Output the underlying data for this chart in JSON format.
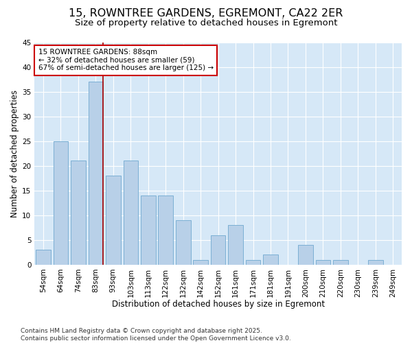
{
  "title_line1": "15, ROWNTREE GARDENS, EGREMONT, CA22 2ER",
  "title_line2": "Size of property relative to detached houses in Egremont",
  "xlabel": "Distribution of detached houses by size in Egremont",
  "ylabel": "Number of detached properties",
  "categories": [
    "54sqm",
    "64sqm",
    "74sqm",
    "83sqm",
    "93sqm",
    "103sqm",
    "113sqm",
    "122sqm",
    "132sqm",
    "142sqm",
    "152sqm",
    "161sqm",
    "171sqm",
    "181sqm",
    "191sqm",
    "200sqm",
    "210sqm",
    "220sqm",
    "230sqm",
    "239sqm",
    "249sqm"
  ],
  "values": [
    3,
    25,
    21,
    37,
    18,
    21,
    14,
    14,
    9,
    1,
    6,
    8,
    1,
    2,
    0,
    4,
    1,
    1,
    0,
    1,
    0
  ],
  "bar_color": "#b8d0e8",
  "bar_edge_color": "#7bafd4",
  "plot_bg_color": "#d6e8f7",
  "fig_bg_color": "#ffffff",
  "grid_color": "#ffffff",
  "vline_color": "#aa0000",
  "vline_x_index": 3,
  "annotation_text": "15 ROWNTREE GARDENS: 88sqm\n← 32% of detached houses are smaller (59)\n67% of semi-detached houses are larger (125) →",
  "annotation_box_facecolor": "#ffffff",
  "annotation_box_edgecolor": "#cc0000",
  "ylim": [
    0,
    45
  ],
  "yticks": [
    0,
    5,
    10,
    15,
    20,
    25,
    30,
    35,
    40,
    45
  ],
  "footer_text": "Contains HM Land Registry data © Crown copyright and database right 2025.\nContains public sector information licensed under the Open Government Licence v3.0.",
  "title_fontsize": 11.5,
  "subtitle_fontsize": 9.5,
  "axis_label_fontsize": 8.5,
  "tick_fontsize": 7.5,
  "annotation_fontsize": 7.5,
  "footer_fontsize": 6.5
}
